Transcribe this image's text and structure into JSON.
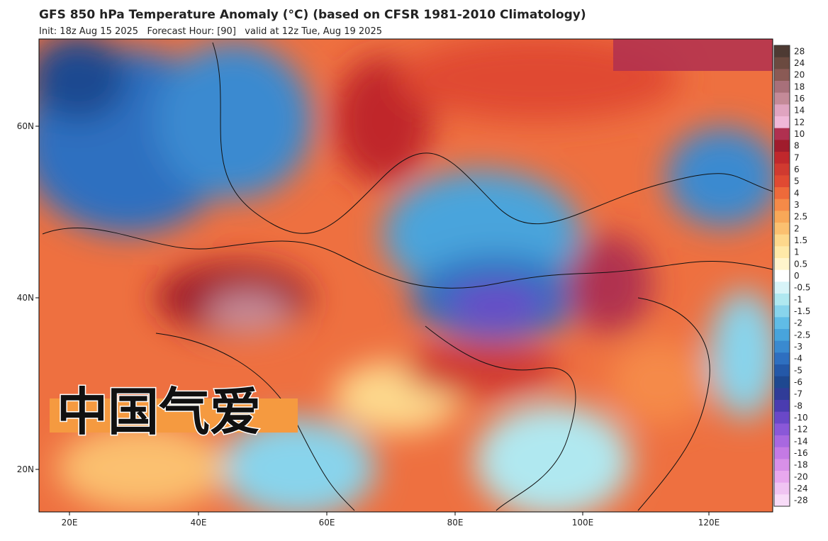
{
  "header": {
    "title": "GFS 850 hPa Temperature Anomaly (°C) (based on CFSR 1981-2010 Climatology)",
    "subtitle": "Init: 18z Aug 15 2025   Forecast Hour: [90]   valid at 12z Tue, Aug 19 2025"
  },
  "map": {
    "lat_labels": [
      "60N",
      "40N",
      "20N"
    ],
    "lon_labels": [
      "20E",
      "40E",
      "60E",
      "80E",
      "100E",
      "120E"
    ],
    "watermark": "中国气爱"
  },
  "colorbar": {
    "levels": [
      28,
      24,
      20,
      18,
      16,
      14,
      12,
      10,
      8,
      7,
      6,
      5,
      4,
      3,
      2.5,
      2,
      1.5,
      1,
      0.5,
      0,
      -0.5,
      -1,
      -1.5,
      -2,
      -2.5,
      -3,
      -4,
      -5,
      -6,
      -7,
      -8,
      -10,
      -12,
      -14,
      -16,
      -18,
      -20,
      -24,
      -28
    ],
    "colors": [
      "#4d3a33",
      "#6b4a40",
      "#8a5a55",
      "#a8707a",
      "#c48a98",
      "#e0a4c0",
      "#f0b8d8",
      "#b03050",
      "#a01c2c",
      "#c0282c",
      "#d03a30",
      "#e04a32",
      "#ee6a3a",
      "#f58a48",
      "#f8a858",
      "#fbc070",
      "#fdd88c",
      "#fee9a8",
      "#fff5cc",
      "#ffffff",
      "#d8f4f8",
      "#b0e8f0",
      "#88d4ec",
      "#60bce6",
      "#48a4dc",
      "#3a8ad0",
      "#2e6fc0",
      "#2458a8",
      "#1e4890",
      "#303c98",
      "#4a3cb0",
      "#6a48c8",
      "#8a58d8",
      "#a868e0",
      "#c47ae4",
      "#d890e8",
      "#e8a8ee",
      "#f0c4f2",
      "#f8dcf8"
    ]
  }
}
